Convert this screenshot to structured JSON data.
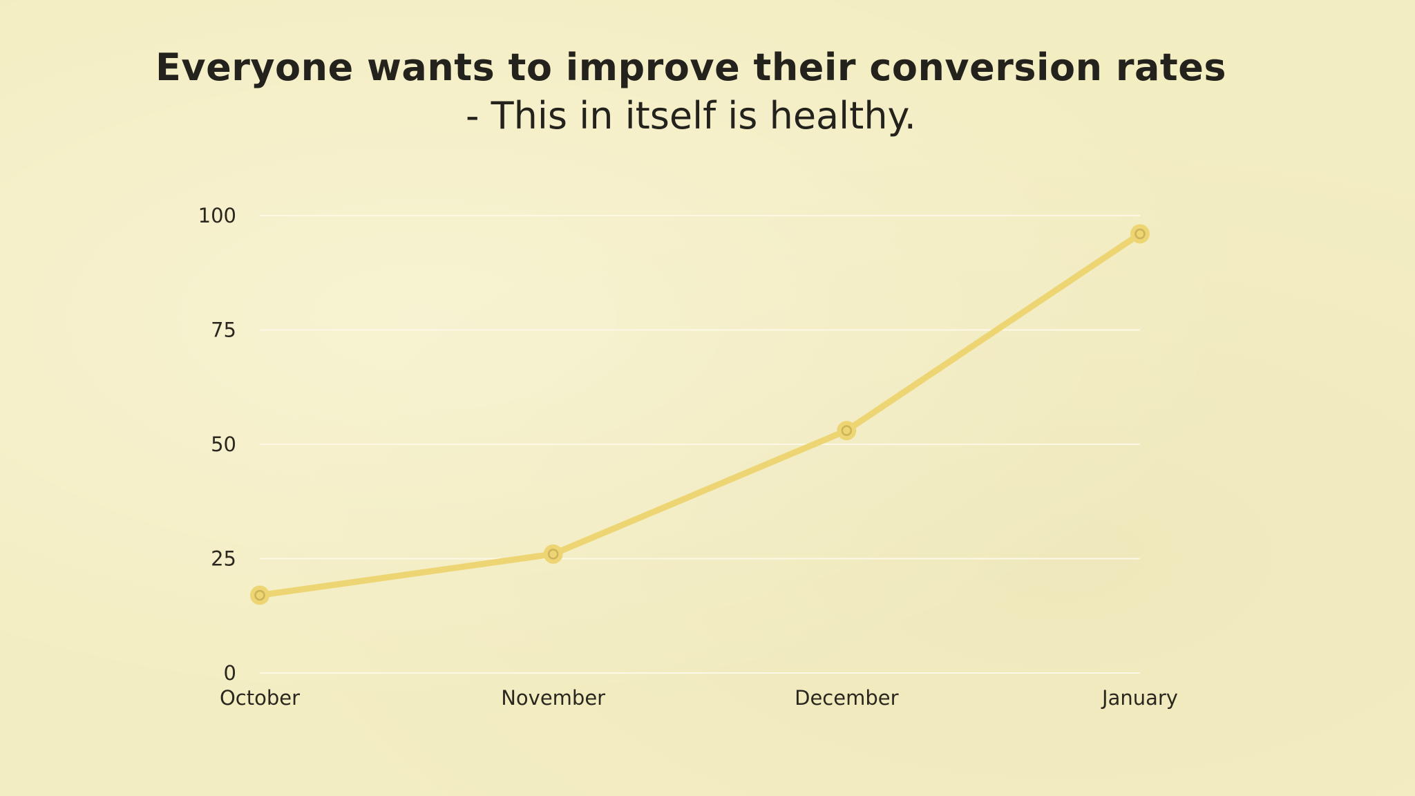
{
  "slide": {
    "title": "Everyone wants to improve their conversion rates",
    "subtitle": "- This in itself is healthy."
  },
  "colors": {
    "background": "#f3edc2",
    "line": "#eed574",
    "gridline": "#fbf8e6",
    "text": "#24221c"
  },
  "chart_data": {
    "type": "line",
    "categories": [
      "October",
      "November",
      "December",
      "January"
    ],
    "series": [
      {
        "values": [
          17,
          26,
          53,
          96
        ]
      }
    ],
    "ylim": [
      0,
      100
    ],
    "yticks": [
      0,
      25,
      50,
      75,
      100
    ],
    "grid": true,
    "legend": "none",
    "xlabel": "",
    "ylabel": ""
  }
}
